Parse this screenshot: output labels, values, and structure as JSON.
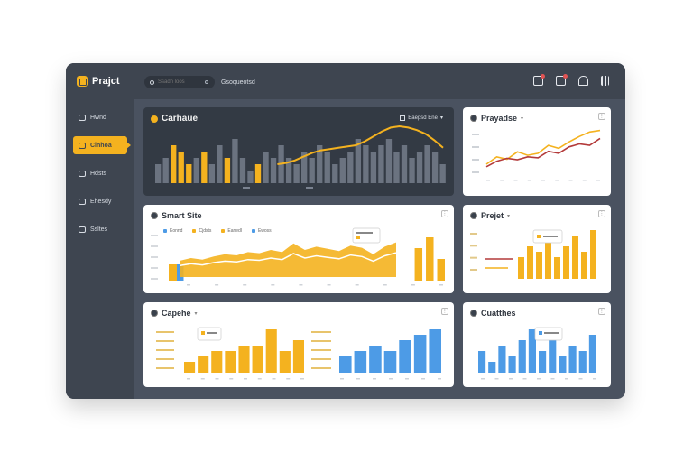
{
  "app": {
    "logo_text": "Prajct"
  },
  "sidebar": {
    "items": [
      {
        "label": "Hwnd",
        "icon": "home-icon"
      },
      {
        "label": "Cinhoa",
        "icon": "layers-icon",
        "active": true
      },
      {
        "label": "Hdsts",
        "icon": "users-icon"
      },
      {
        "label": "Ehesdy",
        "icon": "file-icon"
      },
      {
        "label": "Ssltes",
        "icon": "settings-icon"
      }
    ]
  },
  "topbar": {
    "search_placeholder": "Ssadh loos",
    "breadcrumb": "Gsoqueotsd"
  },
  "colors": {
    "accent": "#f4b21f",
    "blue": "#4d9be6",
    "red": "#b33a3a",
    "dark": "#333a44"
  },
  "cards": {
    "main": {
      "title": "Carhaue",
      "dropdown": "Eaepsd Ene"
    },
    "tr": {
      "title": "Prayadse"
    },
    "mid": {
      "title": "Smart Site"
    },
    "mr": {
      "title": "Prejet"
    },
    "bl": {
      "title": "Capehe"
    },
    "br": {
      "title": "Cuatthes"
    }
  },
  "chart_data": [
    {
      "type": "bar",
      "name_ref": "Carhaue",
      "values": [
        3,
        4,
        6,
        5,
        3,
        4,
        5,
        3,
        6,
        4,
        7,
        4,
        2,
        3,
        5,
        4,
        6,
        4,
        3,
        5,
        4,
        6,
        5,
        3,
        4,
        5,
        7,
        6,
        5,
        6,
        7,
        5,
        6,
        4,
        5,
        6,
        5,
        3
      ],
      "highlight": [
        2,
        3,
        4,
        6,
        9,
        13
      ],
      "line": [
        3,
        3.2,
        3.6,
        4.2,
        4.8,
        5.2,
        5.4,
        5.6,
        5.8,
        6,
        6.6,
        7.4,
        8.2,
        8.8,
        9,
        8.8,
        8.4,
        7.8,
        6.8,
        5.6
      ]
    },
    {
      "type": "line",
      "name_ref": "Prayadse",
      "series": [
        {
          "color": "#f4b21f",
          "values": [
            2,
            3.5,
            3,
            4.5,
            3.8,
            4.2,
            5.8,
            5.2,
            6.5,
            7.6,
            8.5,
            8.8
          ]
        },
        {
          "color": "#b33a3a",
          "values": [
            1.5,
            2.6,
            3.2,
            2.9,
            3.5,
            3.3,
            4.6,
            4.2,
            5.5,
            6.1,
            5.8,
            7.2
          ]
        }
      ]
    },
    {
      "type": "area",
      "name_ref": "Smart Site",
      "legend": [
        "Eonnd",
        "Cjdsts",
        "Eanedl",
        "Ewoss"
      ],
      "bars": [
        3,
        0,
        0,
        0,
        0,
        0,
        0,
        0,
        0,
        0,
        0,
        0,
        0,
        0,
        0,
        0,
        0,
        0,
        0,
        0,
        0,
        0,
        6,
        8,
        4
      ],
      "area": [
        3,
        3.5,
        3.2,
        3.8,
        4.2,
        4,
        4.6,
        4.4,
        5,
        4.6,
        6.2,
        5,
        5.6,
        5.2,
        4.8,
        5.8,
        5.4,
        4.2,
        5.6,
        6.4
      ]
    },
    {
      "type": "bar",
      "name_ref": "Prejet",
      "values": [
        4,
        6,
        5,
        7,
        4,
        6,
        8,
        5,
        9
      ],
      "tooltip": "Paoe nae"
    },
    {
      "type": "bar",
      "name_ref": "Capehe",
      "values": [
        2,
        3,
        4,
        4,
        5,
        5,
        8,
        4,
        6
      ],
      "blue": [
        3,
        4,
        5,
        4,
        6,
        7,
        8
      ],
      "tooltip": "Proit"
    },
    {
      "type": "bar",
      "name_ref": "Cuatthes",
      "values": [
        4,
        2,
        5,
        3,
        6,
        8,
        4,
        6,
        3,
        5,
        4,
        7
      ],
      "tooltip": "Ssbs ens"
    }
  ]
}
